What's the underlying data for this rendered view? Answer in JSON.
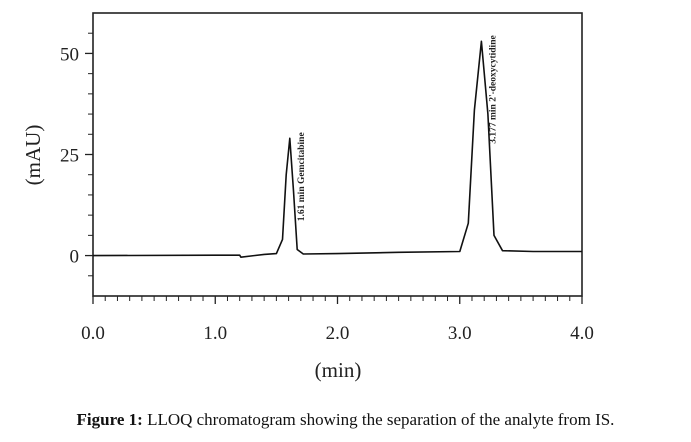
{
  "chart_data": {
    "type": "line",
    "title": "",
    "xlabel": "(min)",
    "ylabel": "(mAU)",
    "xlim": [
      0.0,
      4.0
    ],
    "ylim": [
      -10,
      60
    ],
    "x_ticks": [
      "0.0",
      "1.0",
      "2.0",
      "3.0",
      "4.0"
    ],
    "y_ticks": [
      "0",
      "25",
      "50"
    ],
    "grid": false,
    "series": [
      {
        "x": [
          0.0,
          1.0,
          1.2,
          1.21,
          1.4,
          1.5,
          1.55,
          1.58,
          1.61,
          1.64,
          1.67,
          1.72,
          2.0,
          2.5,
          3.0,
          3.07,
          3.12,
          3.177,
          3.23,
          3.28,
          3.35,
          3.6,
          4.0
        ],
        "y": [
          0.0,
          0.1,
          0.1,
          -0.4,
          0.3,
          0.5,
          4,
          20,
          29,
          16,
          1.5,
          0.4,
          0.5,
          0.8,
          1.0,
          8,
          36,
          53,
          35,
          5,
          1.2,
          1.0,
          1.0
        ]
      }
    ],
    "annotations": [
      {
        "text": "1.61 min Gemcitabine",
        "x": 1.61,
        "y": 29
      },
      {
        "text": "3.177 min 2'-deoxycytidine",
        "x": 3.177,
        "y": 53
      }
    ]
  },
  "caption": {
    "label": "Figure 1:",
    "text": " LLOQ chromatogram showing the separation of the analyte from IS."
  }
}
